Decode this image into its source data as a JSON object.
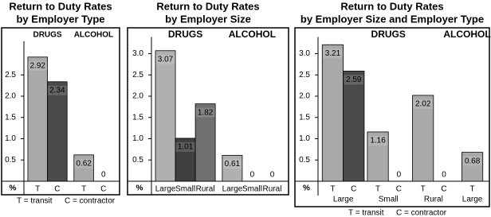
{
  "chart_data": [
    {
      "type": "bar",
      "title": "Return to Duty Rates",
      "subtitle": "by Employer Type",
      "y_label": "%",
      "ylim": [
        0,
        3.2
      ],
      "yticks": [
        0.5,
        {
          "value": 1,
          "label": "1.0"
        },
        1.5,
        {
          "value": 2,
          "label": "2.0"
        },
        2.5
      ],
      "colors": {
        "T": "#a9a9a9",
        "C": "#4a4a4a"
      },
      "groups": [
        {
          "label": "DRUGS",
          "categories": [
            "T",
            "C"
          ],
          "values": [
            2.92,
            2.34
          ]
        },
        {
          "label": "ALCOHOL",
          "categories": [
            "T",
            "C"
          ],
          "values": [
            0.62,
            0
          ]
        }
      ],
      "notes": [
        "T = transit",
        "C = contractor"
      ]
    },
    {
      "type": "bar",
      "title": "Return to Duty Rates",
      "subtitle": "by Employer Size",
      "y_label": "%",
      "ylim": [
        0,
        3.3
      ],
      "yticks": [
        0.5,
        {
          "value": 1,
          "label": "1.0"
        },
        1.5,
        {
          "value": 2,
          "label": "2.0"
        },
        2.5,
        {
          "value": 3,
          "label": "3.0"
        }
      ],
      "colors": {
        "Large": "#b0b0b0",
        "Small": "#3f3f3f",
        "Rural": "#707070"
      },
      "groups": [
        {
          "label": "DRUGS",
          "categories": [
            "Large",
            "Small",
            "Rural"
          ],
          "values": [
            3.07,
            1.01,
            1.82
          ]
        },
        {
          "label": "ALCOHOL",
          "categories": [
            "Large",
            "Small",
            "Rural"
          ],
          "values": [
            0.61,
            0,
            0
          ]
        }
      ]
    },
    {
      "type": "bar",
      "title": "Return to Duty Rates",
      "subtitle": "by Employer Size and Employer Type",
      "y_label": "%",
      "ylim": [
        0,
        3.3
      ],
      "yticks": [
        0.5,
        {
          "value": 1,
          "label": "1.0"
        },
        1.5,
        {
          "value": 2,
          "label": "2.0"
        },
        2.5,
        {
          "value": 3,
          "label": "3.0"
        }
      ],
      "colors": {
        "T": "#a9a9a9",
        "C": "#4a4a4a"
      },
      "groups": [
        {
          "label": "DRUGS",
          "subgroups": [
            {
              "label": "Large",
              "categories": [
                "T",
                "C"
              ],
              "values": [
                3.21,
                2.59
              ]
            },
            {
              "label": "Small",
              "categories": [
                "T",
                "C"
              ],
              "values": [
                1.16,
                0
              ]
            },
            {
              "label": "Rural",
              "categories": [
                "T",
                "C"
              ],
              "values": [
                2.02,
                0
              ]
            }
          ]
        },
        {
          "label": "ALCOHOL",
          "subgroups": [
            {
              "label": "Large",
              "categories": [
                "T"
              ],
              "values": [
                0.68
              ]
            }
          ]
        }
      ],
      "notes": [
        "T = transit",
        "C = contractor"
      ]
    }
  ]
}
